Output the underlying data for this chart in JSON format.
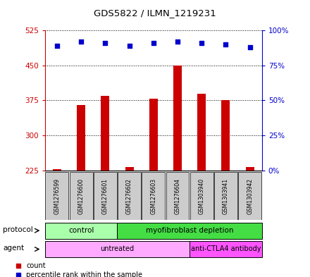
{
  "title": "GDS5822 / ILMN_1219231",
  "samples": [
    "GSM1276599",
    "GSM1276600",
    "GSM1276601",
    "GSM1276602",
    "GSM1276603",
    "GSM1276604",
    "GSM1303940",
    "GSM1303941",
    "GSM1303942"
  ],
  "counts": [
    228,
    365,
    385,
    232,
    378,
    450,
    390,
    375,
    232
  ],
  "percentiles": [
    89,
    92,
    91,
    89,
    91,
    92,
    91,
    90,
    88
  ],
  "ylim_left": [
    225,
    525
  ],
  "ylim_right": [
    0,
    100
  ],
  "yticks_left": [
    225,
    300,
    375,
    450,
    525
  ],
  "yticks_right": [
    0,
    25,
    50,
    75,
    100
  ],
  "protocol_groups": [
    {
      "label": "control",
      "start": 0,
      "end": 3,
      "color": "#aaffaa"
    },
    {
      "label": "myofibroblast depletion",
      "start": 3,
      "end": 9,
      "color": "#44dd44"
    }
  ],
  "agent_groups": [
    {
      "label": "untreated",
      "start": 0,
      "end": 6,
      "color": "#ffaaff"
    },
    {
      "label": "anti-CTLA4 antibody",
      "start": 6,
      "end": 9,
      "color": "#ff55ff"
    }
  ],
  "bar_color": "#CC0000",
  "dot_color": "#0000CC",
  "bar_width": 0.35,
  "left_axis_color": "#CC0000",
  "right_axis_color": "#0000CC",
  "sample_box_color": "#CCCCCC",
  "legend_count": "count",
  "legend_percentile": "percentile rank within the sample"
}
